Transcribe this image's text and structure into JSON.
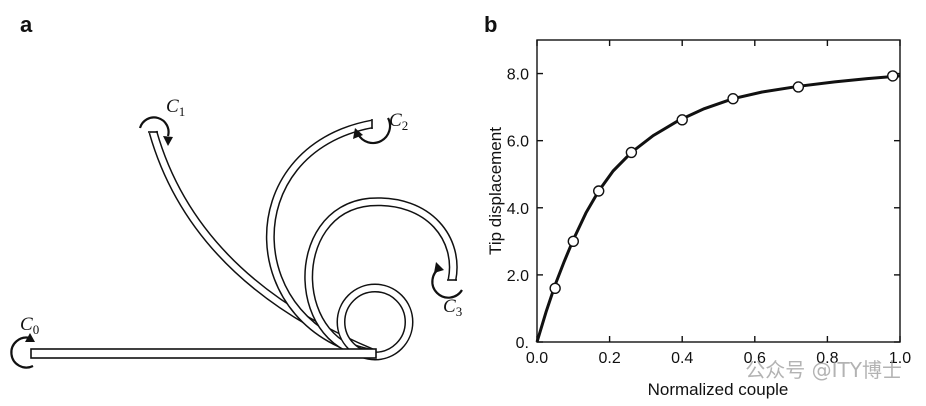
{
  "panels": {
    "a": {
      "label": "a",
      "couples": [
        {
          "symbol": "C",
          "sub": "0"
        },
        {
          "symbol": "C",
          "sub": "1"
        },
        {
          "symbol": "C",
          "sub": "2"
        },
        {
          "symbol": "C",
          "sub": "3"
        }
      ]
    },
    "b": {
      "label": "b"
    }
  },
  "chart_data": {
    "type": "line",
    "title": "",
    "xlabel": "Normalized couple",
    "ylabel": "Tip displacement",
    "xlim": [
      0.0,
      1.0
    ],
    "ylim": [
      0.0,
      9.0
    ],
    "x_ticks": [
      "0.0",
      "0.2",
      "0.4",
      "0.6",
      "0.8",
      "1.0"
    ],
    "y_ticks": [
      "0.",
      "2.0",
      "4.0",
      "6.0",
      "8.0"
    ],
    "grid": false,
    "legend": "none",
    "series": [
      {
        "style": "curve",
        "x": [
          0.0,
          0.025,
          0.05,
          0.075,
          0.1,
          0.135,
          0.17,
          0.21,
          0.26,
          0.32,
          0.39,
          0.46,
          0.54,
          0.62,
          0.72,
          0.82,
          0.91,
          1.0
        ],
        "y": [
          0.0,
          0.9,
          1.7,
          2.4,
          3.05,
          3.85,
          4.5,
          5.1,
          5.65,
          6.15,
          6.6,
          6.95,
          7.25,
          7.45,
          7.62,
          7.75,
          7.85,
          7.93
        ]
      },
      {
        "style": "markers",
        "x": [
          0.05,
          0.1,
          0.17,
          0.26,
          0.4,
          0.54,
          0.72,
          0.98
        ],
        "y": [
          1.6,
          3.0,
          4.5,
          5.65,
          6.62,
          7.25,
          7.6,
          7.93
        ]
      }
    ]
  },
  "watermark": "公众号 @ITY博士"
}
